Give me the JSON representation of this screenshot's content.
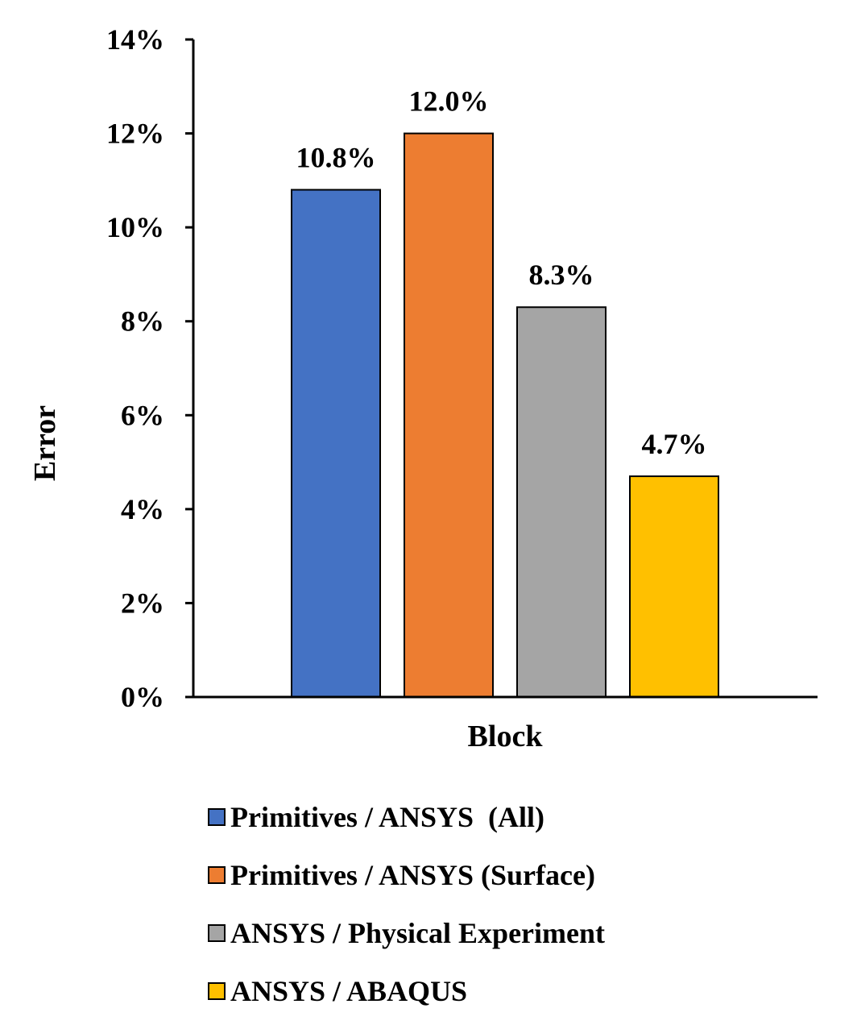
{
  "chart_data": {
    "type": "bar",
    "title": "",
    "xlabel": "Block",
    "ylabel": "Error",
    "categories": [
      "Block"
    ],
    "ylim": [
      0,
      14
    ],
    "y_ticks": [
      "0%",
      "2%",
      "4%",
      "6%",
      "8%",
      "10%",
      "12%",
      "14%"
    ],
    "grid": false,
    "legend_position": "bottom",
    "series": [
      {
        "name": "Primitives / ANSYS  (All)",
        "values": [
          10.8
        ],
        "label": "10.8%",
        "color": "#4472C4"
      },
      {
        "name": "Primitives / ANSYS (Surface)",
        "values": [
          12.0
        ],
        "label": "12.0%",
        "color": "#ED7D31"
      },
      {
        "name": "ANSYS / Physical Experiment",
        "values": [
          8.3
        ],
        "label": "8.3%",
        "color": "#A5A5A5"
      },
      {
        "name": "ANSYS / ABAQUS",
        "values": [
          4.7
        ],
        "label": "4.7%",
        "color": "#FFC000"
      }
    ]
  }
}
